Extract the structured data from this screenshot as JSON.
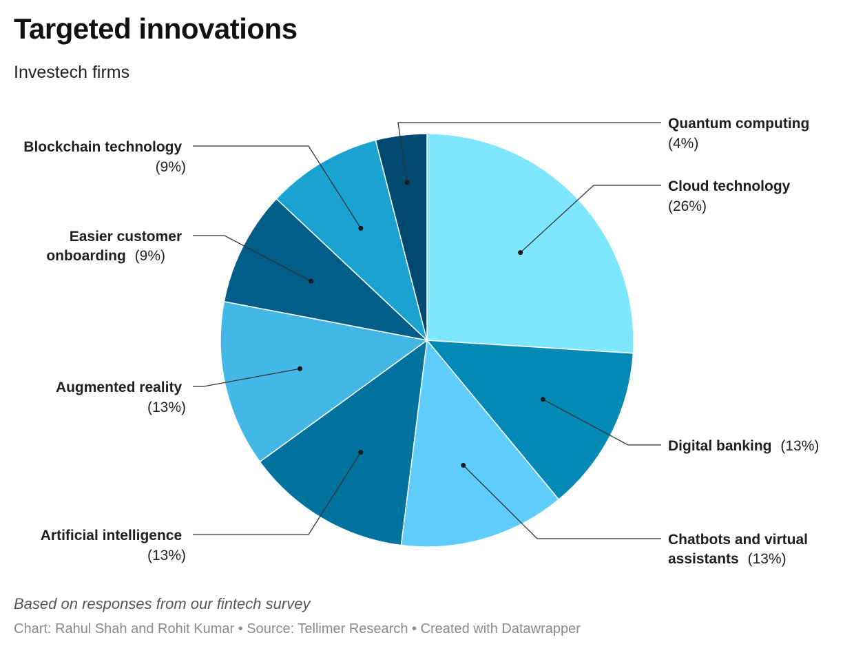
{
  "header": {
    "title": "Targeted innovations",
    "subtitle": "Investech firms"
  },
  "footer": {
    "note": "Based on responses from our fintech survey",
    "credit": "Chart: Rahul Shah and Rohit Kumar • Source: Tellimer Research • Created with Datawrapper"
  },
  "chart_data": {
    "type": "pie",
    "title": "Targeted innovations",
    "subtitle": "Investech firms",
    "unit": "%",
    "start": "12 o'clock, clockwise",
    "slices": [
      {
        "label": "Cloud technology",
        "value": 26,
        "display": "(26%)",
        "color": "#7ee6fe"
      },
      {
        "label": "Digital banking",
        "value": 13,
        "display": "(13%)",
        "color": "#0289b6"
      },
      {
        "label": "Chatbots and virtual assistants",
        "value": 13,
        "display": "(13%)",
        "color": "#5fcdfb"
      },
      {
        "label": "Artificial intelligence",
        "value": 13,
        "display": "(13%)",
        "color": "#01719e"
      },
      {
        "label": "Augmented reality",
        "value": 13,
        "display": "(13%)",
        "color": "#43b8e6"
      },
      {
        "label": "Easier customer onboarding",
        "value": 9,
        "display": "(9%)",
        "color": "#025e88"
      },
      {
        "label": "Blockchain technology",
        "value": 9,
        "display": "(9%)",
        "color": "#1aa2d1"
      },
      {
        "label": "Quantum computing",
        "value": 4,
        "display": "(4%)",
        "color": "#004a70"
      }
    ]
  }
}
